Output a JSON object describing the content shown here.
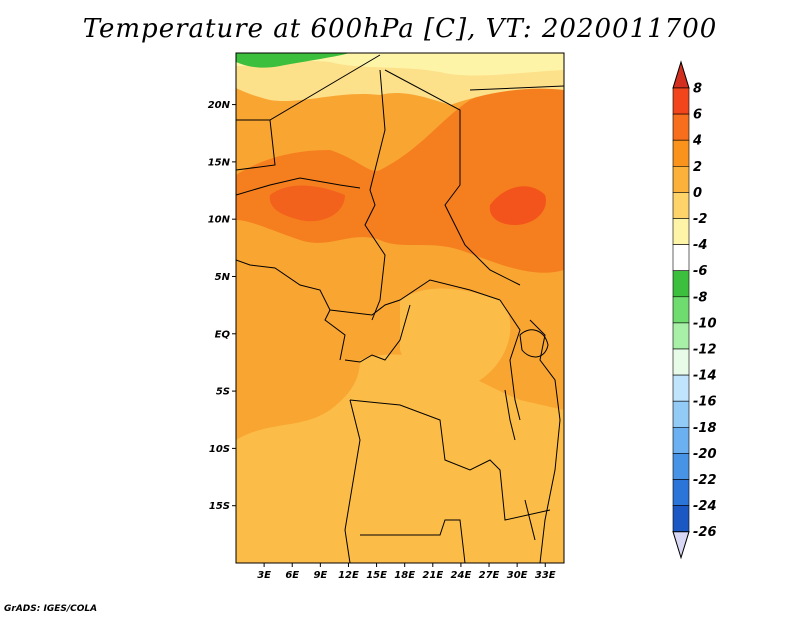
{
  "title": "Temperature at 600hPa [C], VT: 2020011700",
  "credit": "GrADS: IGES/COLA",
  "map": {
    "lon_range": [
      0,
      35
    ],
    "lat_range": [
      -20,
      24.5
    ],
    "lat_labels": [
      {
        "value": 20,
        "label": "20N"
      },
      {
        "value": 15,
        "label": "15N"
      },
      {
        "value": 10,
        "label": "10N"
      },
      {
        "value": 5,
        "label": "5N"
      },
      {
        "value": 0,
        "label": "EQ"
      },
      {
        "value": -5,
        "label": "5S"
      },
      {
        "value": -10,
        "label": "10S"
      },
      {
        "value": -15,
        "label": "15S"
      }
    ],
    "lon_labels": [
      {
        "value": 3,
        "label": "3E"
      },
      {
        "value": 6,
        "label": "6E"
      },
      {
        "value": 9,
        "label": "9E"
      },
      {
        "value": 12,
        "label": "12E"
      },
      {
        "value": 15,
        "label": "15E"
      },
      {
        "value": 18,
        "label": "18E"
      },
      {
        "value": 21,
        "label": "21E"
      },
      {
        "value": 24,
        "label": "24E"
      },
      {
        "value": 27,
        "label": "27E"
      },
      {
        "value": 30,
        "label": "30E"
      },
      {
        "value": 33,
        "label": "33E"
      }
    ]
  },
  "colorbar": {
    "labels": [
      "8",
      "6",
      "4",
      "2",
      "0",
      "-2",
      "-4",
      "-6",
      "-8",
      "-10",
      "-12",
      "-14",
      "-16",
      "-18",
      "-20",
      "-22",
      "-24",
      "-26"
    ],
    "colors": [
      "#d32f1e",
      "#f2451c",
      "#f76e1c",
      "#f9931c",
      "#fbb13a",
      "#fdd36a",
      "#fef4a8",
      "#ffffff",
      "#3cbf3c",
      "#6fdc6f",
      "#a8f0a8",
      "#e8fbe8",
      "#bfe4fb",
      "#93cbf7",
      "#6bb0f0",
      "#4794e6",
      "#2b74d8",
      "#1c58c4",
      "#1640a8",
      "#0e1f7a",
      "#d8d8f4"
    ]
  }
}
